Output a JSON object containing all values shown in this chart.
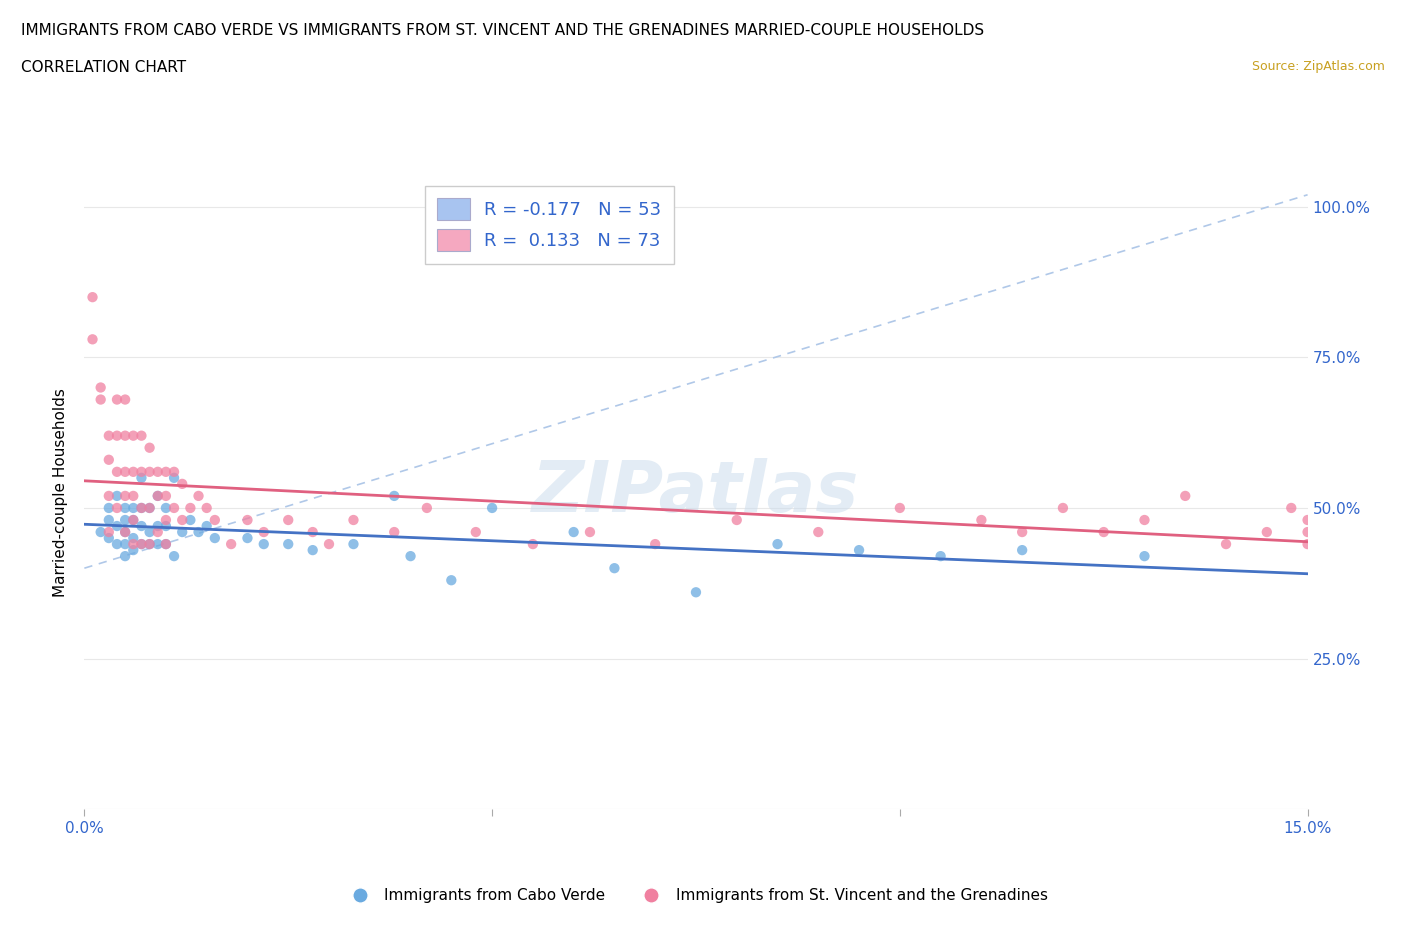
{
  "title_line1": "IMMIGRANTS FROM CABO VERDE VS IMMIGRANTS FROM ST. VINCENT AND THE GRENADINES MARRIED-COUPLE HOUSEHOLDS",
  "title_line2": "CORRELATION CHART",
  "source": "Source: ZipAtlas.com",
  "ylabel": "Married-couple Households",
  "watermark": "ZIPatlas",
  "xlim": [
    0.0,
    0.15
  ],
  "ylim": [
    0.0,
    1.05
  ],
  "xtick_positions": [
    0.0,
    0.05,
    0.1,
    0.15
  ],
  "xtick_labels": [
    "0.0%",
    "",
    "",
    "15.0%"
  ],
  "ytick_positions": [
    0.0,
    0.25,
    0.5,
    0.75,
    1.0
  ],
  "ytick_labels": [
    "",
    "25.0%",
    "50.0%",
    "75.0%",
    "100.0%"
  ],
  "legend_line1": "R = -0.177   N = 53",
  "legend_line2": "R =  0.133   N = 73",
  "legend1_facecolor": "#a8c4f0",
  "legend2_facecolor": "#f5a8c0",
  "blue_color": "#6aaae0",
  "pink_color": "#f080a0",
  "blue_trend_color": "#4472c4",
  "pink_trend_color": "#e06080",
  "dashed_line_color": "#b0c8e8",
  "grid_color": "#e8e8e8",
  "tick_color": "#3366cc",
  "bg_color": "#ffffff",
  "cat1_label": "Immigrants from Cabo Verde",
  "cat2_label": "Immigrants from St. Vincent and the Grenadines",
  "cabo_x": [
    0.002,
    0.003,
    0.003,
    0.003,
    0.004,
    0.004,
    0.004,
    0.005,
    0.005,
    0.005,
    0.005,
    0.005,
    0.006,
    0.006,
    0.006,
    0.006,
    0.007,
    0.007,
    0.007,
    0.007,
    0.008,
    0.008,
    0.008,
    0.009,
    0.009,
    0.009,
    0.01,
    0.01,
    0.01,
    0.011,
    0.011,
    0.012,
    0.013,
    0.014,
    0.015,
    0.016,
    0.02,
    0.022,
    0.025,
    0.028,
    0.033,
    0.038,
    0.04,
    0.045,
    0.05,
    0.06,
    0.065,
    0.075,
    0.085,
    0.095,
    0.105,
    0.115,
    0.13
  ],
  "cabo_y": [
    0.46,
    0.5,
    0.48,
    0.45,
    0.52,
    0.47,
    0.44,
    0.5,
    0.46,
    0.48,
    0.44,
    0.42,
    0.5,
    0.48,
    0.45,
    0.43,
    0.5,
    0.47,
    0.55,
    0.44,
    0.5,
    0.46,
    0.44,
    0.52,
    0.47,
    0.44,
    0.5,
    0.47,
    0.44,
    0.55,
    0.42,
    0.46,
    0.48,
    0.46,
    0.47,
    0.45,
    0.45,
    0.44,
    0.44,
    0.43,
    0.44,
    0.52,
    0.42,
    0.38,
    0.5,
    0.46,
    0.4,
    0.36,
    0.44,
    0.43,
    0.42,
    0.43,
    0.42
  ],
  "stv_x": [
    0.001,
    0.001,
    0.002,
    0.002,
    0.003,
    0.003,
    0.003,
    0.003,
    0.004,
    0.004,
    0.004,
    0.004,
    0.005,
    0.005,
    0.005,
    0.005,
    0.005,
    0.006,
    0.006,
    0.006,
    0.006,
    0.006,
    0.007,
    0.007,
    0.007,
    0.007,
    0.008,
    0.008,
    0.008,
    0.008,
    0.009,
    0.009,
    0.009,
    0.01,
    0.01,
    0.01,
    0.01,
    0.011,
    0.011,
    0.012,
    0.012,
    0.013,
    0.014,
    0.015,
    0.016,
    0.018,
    0.02,
    0.022,
    0.025,
    0.028,
    0.03,
    0.033,
    0.038,
    0.042,
    0.048,
    0.055,
    0.062,
    0.07,
    0.08,
    0.09,
    0.1,
    0.11,
    0.115,
    0.12,
    0.125,
    0.13,
    0.135,
    0.14,
    0.145,
    0.148,
    0.15,
    0.15,
    0.15
  ],
  "stv_y": [
    0.85,
    0.78,
    0.7,
    0.68,
    0.62,
    0.58,
    0.52,
    0.46,
    0.68,
    0.62,
    0.56,
    0.5,
    0.68,
    0.62,
    0.56,
    0.52,
    0.46,
    0.62,
    0.56,
    0.52,
    0.48,
    0.44,
    0.62,
    0.56,
    0.5,
    0.44,
    0.6,
    0.56,
    0.5,
    0.44,
    0.56,
    0.52,
    0.46,
    0.56,
    0.52,
    0.48,
    0.44,
    0.56,
    0.5,
    0.54,
    0.48,
    0.5,
    0.52,
    0.5,
    0.48,
    0.44,
    0.48,
    0.46,
    0.48,
    0.46,
    0.44,
    0.48,
    0.46,
    0.5,
    0.46,
    0.44,
    0.46,
    0.44,
    0.48,
    0.46,
    0.5,
    0.48,
    0.46,
    0.5,
    0.46,
    0.48,
    0.52,
    0.44,
    0.46,
    0.5,
    0.46,
    0.48,
    0.44
  ]
}
